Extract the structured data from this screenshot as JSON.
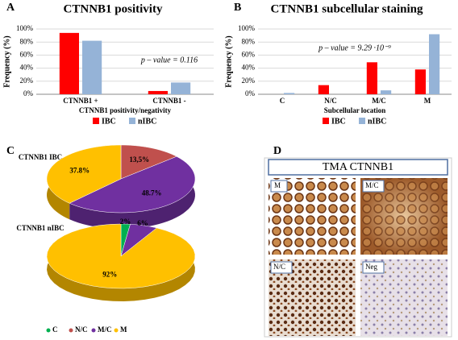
{
  "chart_data": [
    {
      "type": "bar",
      "panel": "A",
      "title": "CTNNB1 positivity",
      "y_label": "Frequency (%)",
      "x_label": "CTNNB1 positivity/negativity",
      "annotation": "p – value = 0.116",
      "categories": [
        "CTNNB1 +",
        "CTNNB1 -"
      ],
      "series": [
        {
          "name": "IBC",
          "color": "#ff0000",
          "values": [
            94,
            5
          ]
        },
        {
          "name": "nIBC",
          "color": "#95b3d7",
          "values": [
            82,
            18
          ]
        }
      ],
      "ylim": [
        0,
        100
      ],
      "yticks": [
        {
          "value": 0,
          "label": "0%"
        },
        {
          "value": 20,
          "label": "20%"
        },
        {
          "value": 40,
          "label": "40%"
        },
        {
          "value": 60,
          "label": "60%"
        },
        {
          "value": 80,
          "label": "80%"
        },
        {
          "value": 100,
          "label": "100%"
        }
      ],
      "grid": true,
      "legend": "bottom"
    },
    {
      "type": "bar",
      "panel": "B",
      "title": "CTNNB1 subcellular staining",
      "y_label": "Frequency (%)",
      "x_label": "Subcellular location",
      "annotation": "p – value = 9.29 ·10⁻⁹",
      "categories": [
        "C",
        "N/C",
        "M/C",
        "M"
      ],
      "series": [
        {
          "name": "IBC",
          "color": "#ff0000",
          "values": [
            0,
            14,
            49,
            38
          ]
        },
        {
          "name": "nIBC",
          "color": "#95b3d7",
          "values": [
            2,
            0,
            6,
            92
          ]
        }
      ],
      "ylim": [
        0,
        100
      ],
      "yticks": [
        {
          "value": 0,
          "label": "0%"
        },
        {
          "value": 20,
          "label": "20%"
        },
        {
          "value": 40,
          "label": "40%"
        },
        {
          "value": 60,
          "label": "60%"
        },
        {
          "value": 80,
          "label": "80%"
        },
        {
          "value": 100,
          "label": "100%"
        }
      ],
      "grid": true,
      "legend": "bottom"
    },
    {
      "type": "pie",
      "panel": "C",
      "title": "CTNNB1 IBC",
      "categories": [
        "C",
        "N/C",
        "M/C",
        "M"
      ],
      "colors": [
        "#00b050",
        "#c0504d",
        "#7030a0",
        "#ffc000"
      ],
      "values": [
        null,
        13.5,
        48.7,
        37.8
      ],
      "value_labels": [
        null,
        "13,5%",
        "48.7%",
        "37.8%"
      ]
    },
    {
      "type": "pie",
      "title": "CTNNB1 nIBC",
      "categories": [
        "C",
        "N/C",
        "M/C",
        "M"
      ],
      "colors": [
        "#00b050",
        "#c0504d",
        "#7030a0",
        "#ffc000"
      ],
      "values": [
        2,
        null,
        6,
        92
      ],
      "value_labels": [
        "2%",
        null,
        "6%",
        "92%"
      ],
      "legend": "bottom"
    }
  ],
  "panel_d": {
    "panel": "D",
    "title": "TMA CTNNB1",
    "images": [
      "M",
      "M/C",
      "N/C",
      "Neg"
    ]
  }
}
